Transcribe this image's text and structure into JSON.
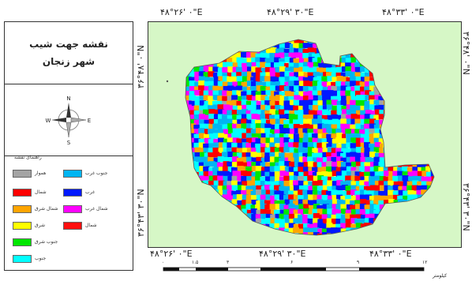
{
  "title": {
    "line1": "نقشه جهت شیب",
    "line2": "شهر زنجان"
  },
  "north_arrow": {
    "n": "N",
    "s": "S",
    "e": "E",
    "w": "W"
  },
  "coordinates": {
    "top": [
      "۴۸°۲۶' ۰\"E",
      "۴۸°۲۹' ۳۰\"E",
      "۴۸°۳۳' ۰\"E"
    ],
    "bottom": [
      "۴۸°۲۶' ۰\"E",
      "۴۸°۲۹' ۳۰\"E",
      "۴۸°۳۳' ۰\"E"
    ],
    "left": [
      "۳۶°۴۸' ۰\"N",
      "۳۶°۴۳' ۳۰\"N"
    ],
    "right": [
      "۳۶°۴۸' ۰\"N",
      "۳۶°۴۳' ۳۰\"N"
    ]
  },
  "legend": {
    "title": "راهنمای نقشه",
    "items": [
      {
        "label": "هموار",
        "color": "#a3a3a3"
      },
      {
        "label": "جنوب غرب",
        "color": "#00b5f2"
      },
      {
        "label": "شمال",
        "color": "#ff0000"
      },
      {
        "label": "غرب",
        "color": "#0018ff"
      },
      {
        "label": "شمال شرق",
        "color": "#ffa500"
      },
      {
        "label": "شمال غرب",
        "color": "#ff00ff"
      },
      {
        "label": "شرق",
        "color": "#ffff00"
      },
      {
        "label": "شمال",
        "color": "#ff1010"
      },
      {
        "label": "جنوب شرق",
        "color": "#00e600"
      },
      {
        "label": "جنوب",
        "color": "#00ffff"
      }
    ]
  },
  "scale": {
    "ticks": [
      "۰",
      "۱.۵",
      "۳",
      "۶",
      "۹",
      "۱۲"
    ],
    "unit": "کیلومتر"
  },
  "colors": {
    "background": "#d6f7c6",
    "palette": [
      "#00ffff",
      "#00b5f2",
      "#0018ff",
      "#ff00ff",
      "#ff0000",
      "#ffa500",
      "#ffff00",
      "#00e600",
      "#a3a3a3"
    ]
  }
}
